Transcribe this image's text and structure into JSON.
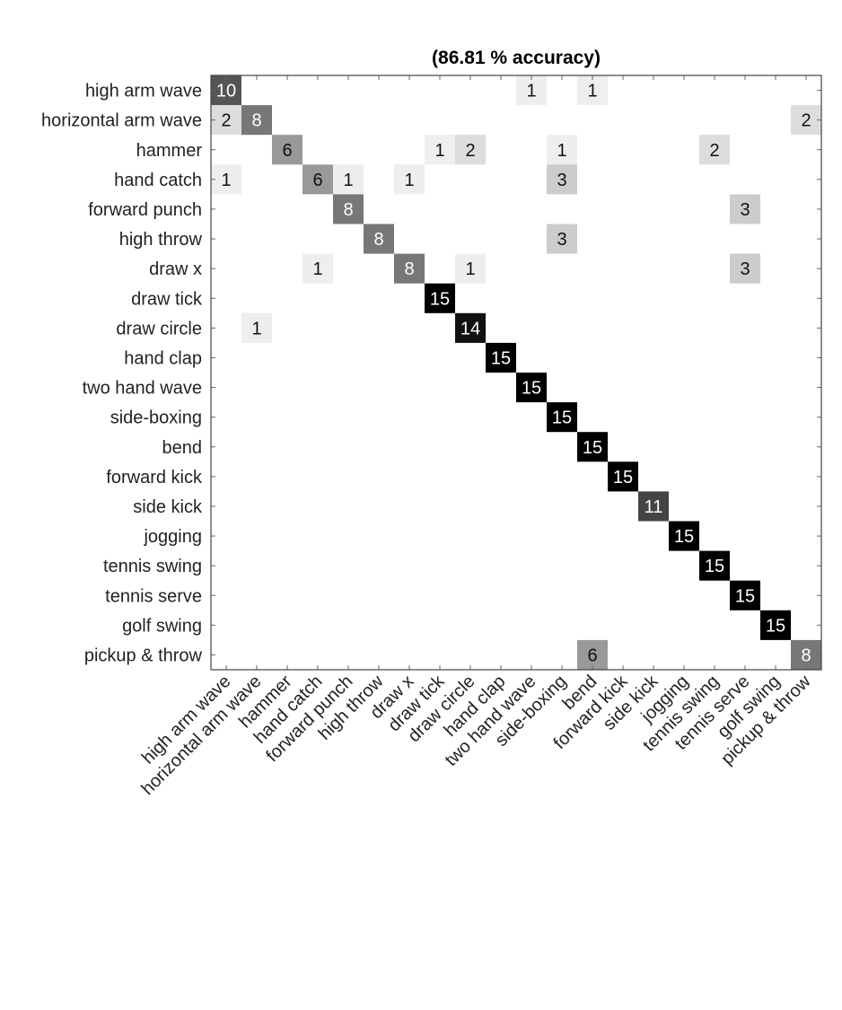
{
  "chart_data": {
    "type": "heatmap",
    "title": "(86.81 % accuracy)",
    "row_labels": [
      "high arm wave",
      "horizontal arm wave",
      "hammer",
      "hand catch",
      "forward punch",
      "high throw",
      "draw x",
      "draw tick",
      "draw circle",
      "hand clap",
      "two hand wave",
      "side-boxing",
      "bend",
      "forward kick",
      "side kick",
      "jogging",
      "tennis swing",
      "tennis serve",
      "golf swing",
      "pickup & throw"
    ],
    "col_labels": [
      "high arm wave",
      "horizontal arm wave",
      "hammer",
      "hand catch",
      "forward punch",
      "high throw",
      "draw x",
      "draw tick",
      "draw circle",
      "hand clap",
      "two hand wave",
      "side-boxing",
      "bend",
      "forward kick",
      "side kick",
      "jogging",
      "tennis swing",
      "tennis serve",
      "golf swing",
      "pickup & throw"
    ],
    "cells": [
      {
        "row": 0,
        "col": 0,
        "value": 10
      },
      {
        "row": 0,
        "col": 10,
        "value": 1
      },
      {
        "row": 0,
        "col": 12,
        "value": 1
      },
      {
        "row": 1,
        "col": 0,
        "value": 2
      },
      {
        "row": 1,
        "col": 1,
        "value": 8
      },
      {
        "row": 1,
        "col": 19,
        "value": 2
      },
      {
        "row": 2,
        "col": 2,
        "value": 6
      },
      {
        "row": 2,
        "col": 7,
        "value": 1
      },
      {
        "row": 2,
        "col": 8,
        "value": 2
      },
      {
        "row": 2,
        "col": 11,
        "value": 1
      },
      {
        "row": 2,
        "col": 16,
        "value": 2
      },
      {
        "row": 3,
        "col": 0,
        "value": 1
      },
      {
        "row": 3,
        "col": 3,
        "value": 6
      },
      {
        "row": 3,
        "col": 4,
        "value": 1
      },
      {
        "row": 3,
        "col": 6,
        "value": 1
      },
      {
        "row": 3,
        "col": 11,
        "value": 3
      },
      {
        "row": 4,
        "col": 4,
        "value": 8
      },
      {
        "row": 4,
        "col": 17,
        "value": 3
      },
      {
        "row": 5,
        "col": 5,
        "value": 8
      },
      {
        "row": 5,
        "col": 11,
        "value": 3
      },
      {
        "row": 6,
        "col": 3,
        "value": 1
      },
      {
        "row": 6,
        "col": 6,
        "value": 8
      },
      {
        "row": 6,
        "col": 8,
        "value": 1
      },
      {
        "row": 6,
        "col": 17,
        "value": 3
      },
      {
        "row": 7,
        "col": 7,
        "value": 15
      },
      {
        "row": 8,
        "col": 1,
        "value": 1
      },
      {
        "row": 8,
        "col": 8,
        "value": 14
      },
      {
        "row": 9,
        "col": 9,
        "value": 15
      },
      {
        "row": 10,
        "col": 10,
        "value": 15
      },
      {
        "row": 11,
        "col": 11,
        "value": 15
      },
      {
        "row": 12,
        "col": 12,
        "value": 15
      },
      {
        "row": 13,
        "col": 13,
        "value": 15
      },
      {
        "row": 14,
        "col": 14,
        "value": 11
      },
      {
        "row": 15,
        "col": 15,
        "value": 15
      },
      {
        "row": 16,
        "col": 16,
        "value": 15
      },
      {
        "row": 17,
        "col": 17,
        "value": 15
      },
      {
        "row": 18,
        "col": 18,
        "value": 15
      },
      {
        "row": 19,
        "col": 12,
        "value": 6
      },
      {
        "row": 19,
        "col": 19,
        "value": 8
      }
    ],
    "value_max": 15,
    "colormap": "white-to-black"
  }
}
